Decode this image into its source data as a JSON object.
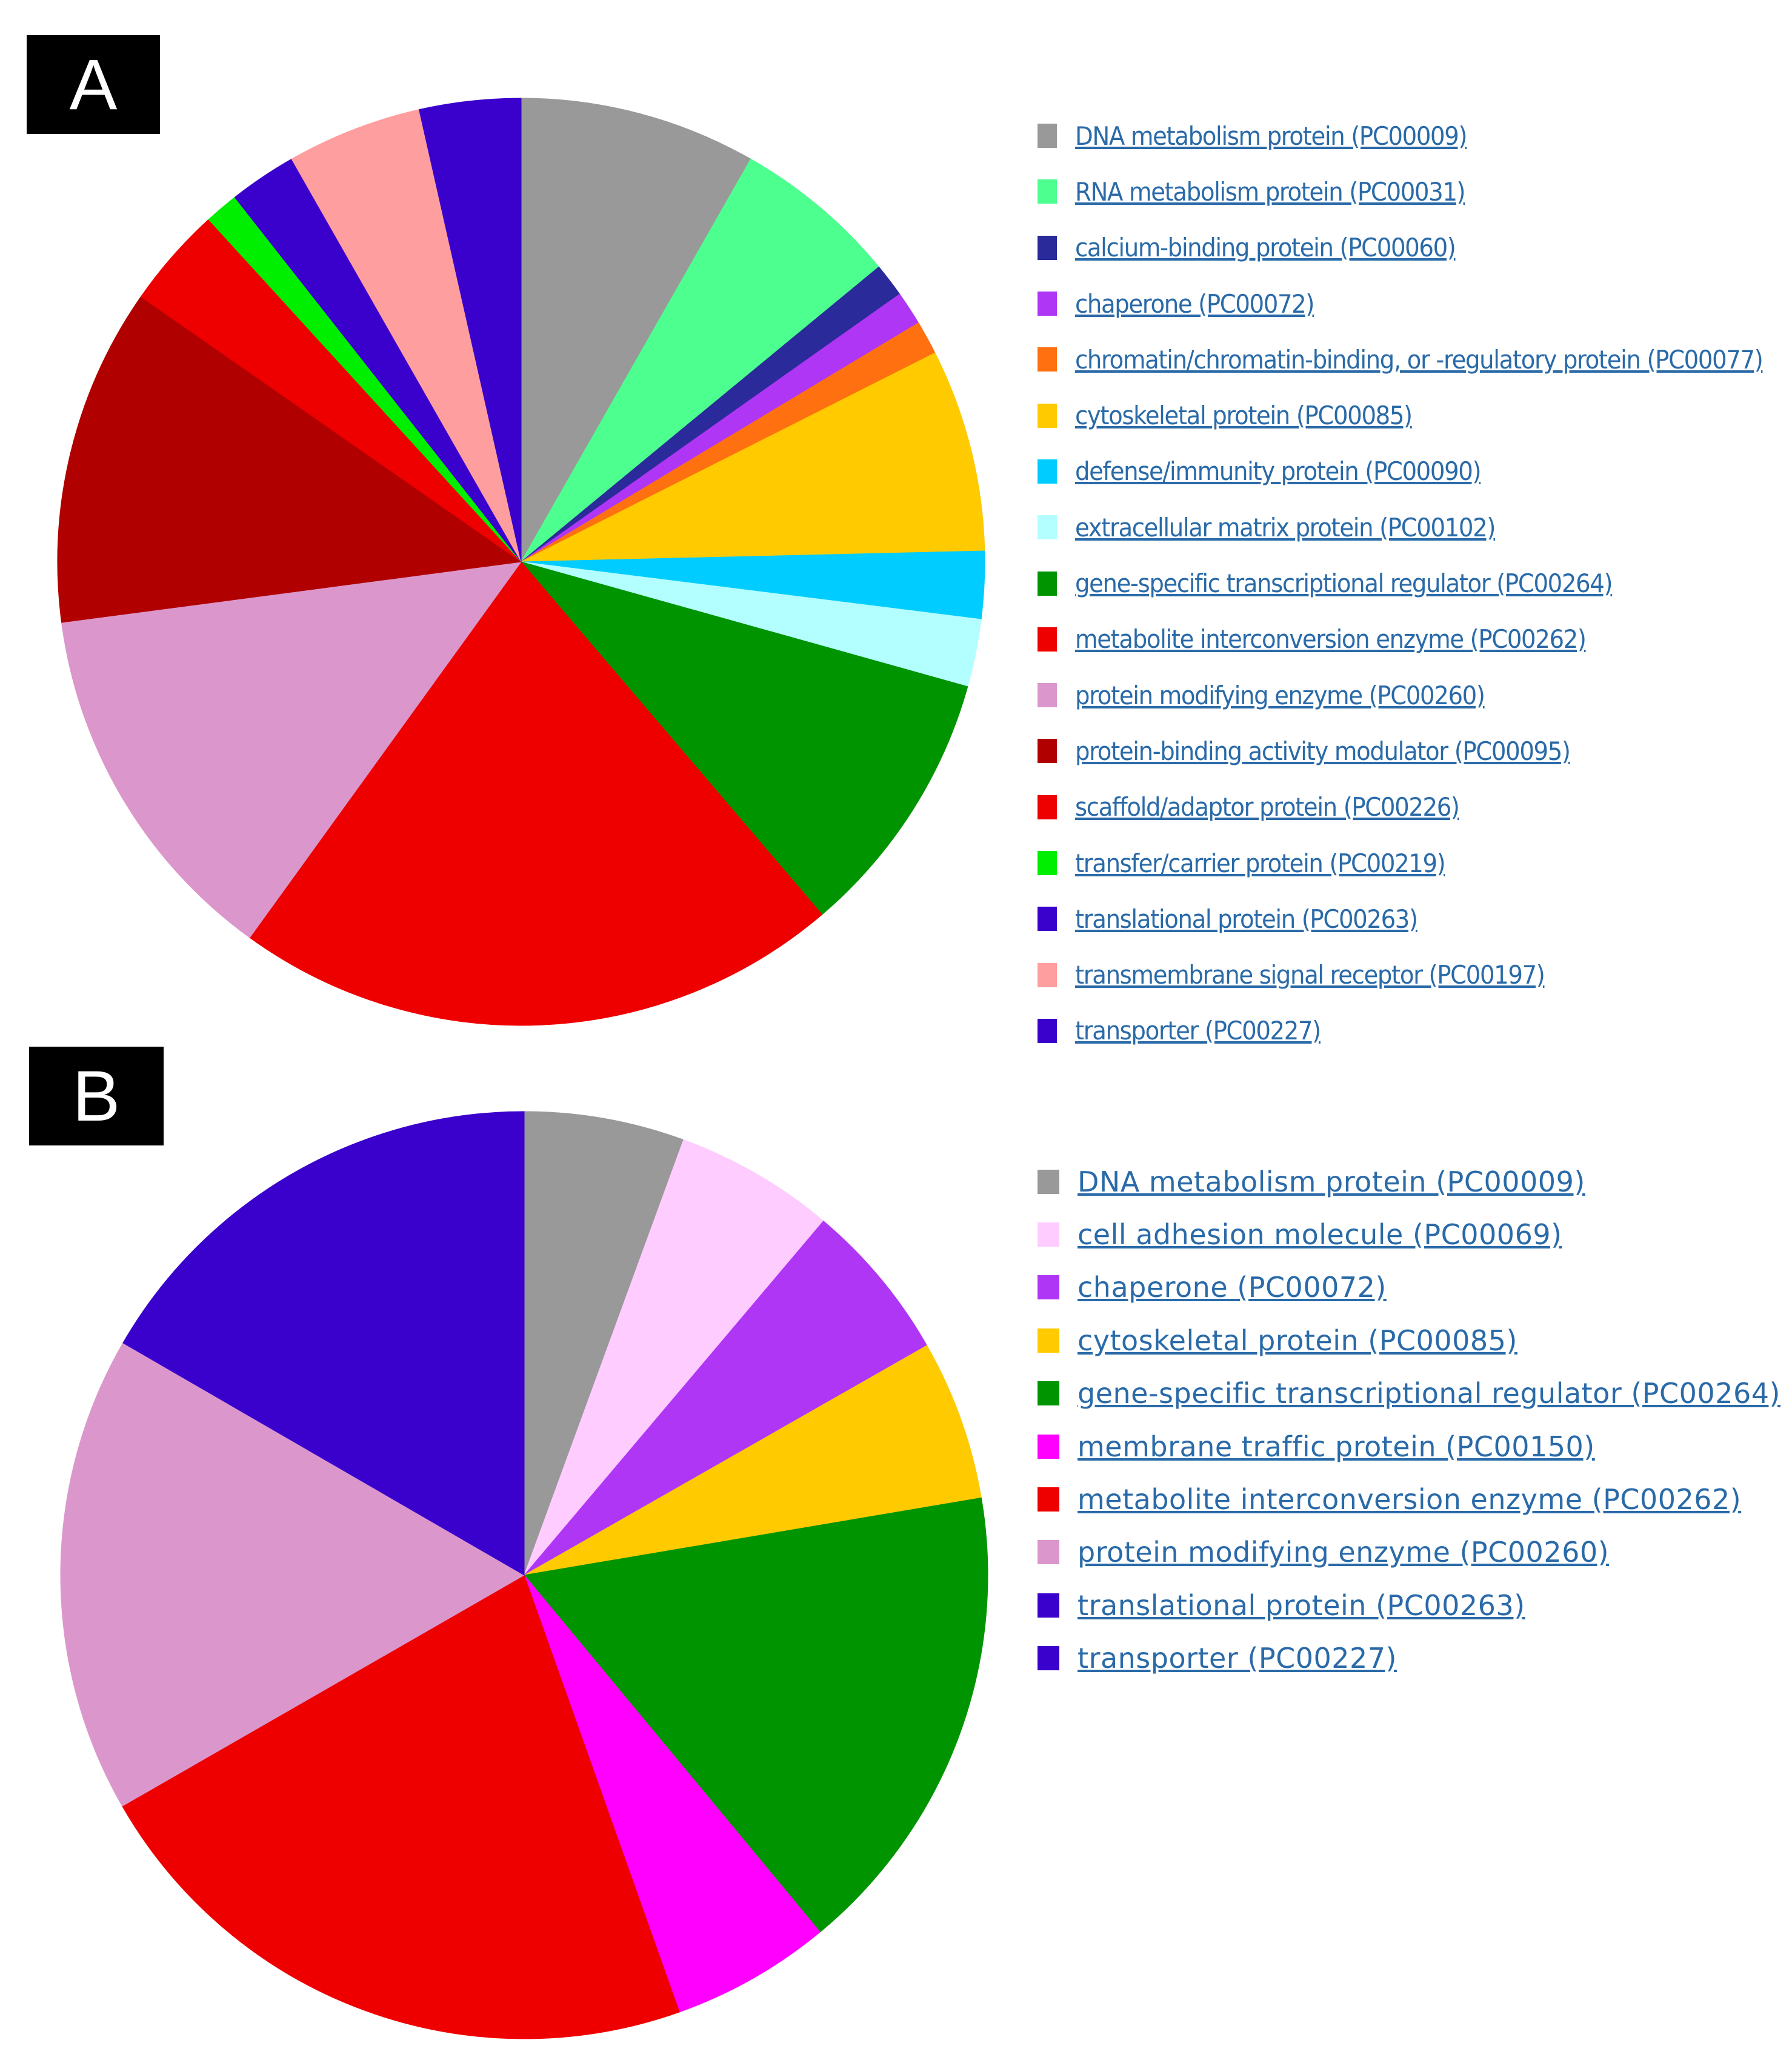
{
  "chart_data": [
    {
      "type": "pie",
      "panel": "A",
      "title": "",
      "legend_position": "right",
      "slices": [
        {
          "label": "DNA metabolism protein (PC00009)",
          "value": 7.7,
          "color": "#999999"
        },
        {
          "label": "RNA metabolism protein (PC00031)",
          "value": 5.4,
          "color": "#4dff8f"
        },
        {
          "label": "calcium-binding protein (PC00060)",
          "value": 1.1,
          "color": "#2a2a9a"
        },
        {
          "label": "chaperone (PC00072)",
          "value": 1.1,
          "color": "#b036f5"
        },
        {
          "label": "chromatin/chromatin-binding, or -regulatory protein (PC00077)",
          "value": 1.1,
          "color": "#ff7010"
        },
        {
          "label": "cytoskeletal protein (PC00085)",
          "value": 6.6,
          "color": "#ffca00"
        },
        {
          "label": "defense/immunity protein (PC00090)",
          "value": 2.2,
          "color": "#00ccff"
        },
        {
          "label": "extracellular matrix protein (PC00102)",
          "value": 2.2,
          "color": "#b3ffff"
        },
        {
          "label": "gene-specific transcriptional regulator (PC00264)",
          "value": 8.8,
          "color": "#009400"
        },
        {
          "label": "metabolite interconversion enzyme (PC00262)",
          "value": 19.8,
          "color": "#ee0000"
        },
        {
          "label": "protein modifying enzyme (PC00260)",
          "value": 12.1,
          "color": "#db97cc"
        },
        {
          "label": "protein-binding activity modulator (PC00095)",
          "value": 11.0,
          "color": "#b00000"
        },
        {
          "label": "scaffold/adaptor protein (PC00226)",
          "value": 3.3,
          "color": "#ee0000"
        },
        {
          "label": "transfer/carrier protein (PC00219)",
          "value": 1.1,
          "color": "#00ee00"
        },
        {
          "label": "translational protein (PC00263)",
          "value": 2.2,
          "color": "#3a00cc"
        },
        {
          "label": "transmembrane signal receptor (PC00197)",
          "value": 4.4,
          "color": "#ff9e9e"
        },
        {
          "label": "transporter (PC00227)",
          "value": 3.3,
          "color": "#3a00cc"
        }
      ]
    },
    {
      "type": "pie",
      "panel": "B",
      "title": "",
      "legend_position": "right",
      "slices": [
        {
          "label": "DNA metabolism protein (PC00009)",
          "value": 5.6,
          "color": "#999999"
        },
        {
          "label": "cell adhesion molecule (PC00069)",
          "value": 5.6,
          "color": "#ffccff"
        },
        {
          "label": "chaperone (PC00072)",
          "value": 5.6,
          "color": "#b036f5"
        },
        {
          "label": "cytoskeletal protein (PC00085)",
          "value": 5.6,
          "color": "#ffca00"
        },
        {
          "label": "gene-specific transcriptional regulator (PC00264)",
          "value": 16.7,
          "color": "#009400"
        },
        {
          "label": "membrane traffic protein (PC00150)",
          "value": 5.6,
          "color": "#ff00ff"
        },
        {
          "label": "metabolite interconversion enzyme (PC00262)",
          "value": 22.2,
          "color": "#ee0000"
        },
        {
          "label": "protein modifying enzyme (PC00260)",
          "value": 16.7,
          "color": "#db97cc"
        },
        {
          "label": "translational protein (PC00263)",
          "value": 5.6,
          "color": "#3a00cc"
        },
        {
          "label": "transporter (PC00227)",
          "value": 11.1,
          "color": "#3a00cc"
        }
      ]
    }
  ],
  "panels": {
    "a": {
      "label": "A"
    },
    "b": {
      "label": "B"
    }
  }
}
